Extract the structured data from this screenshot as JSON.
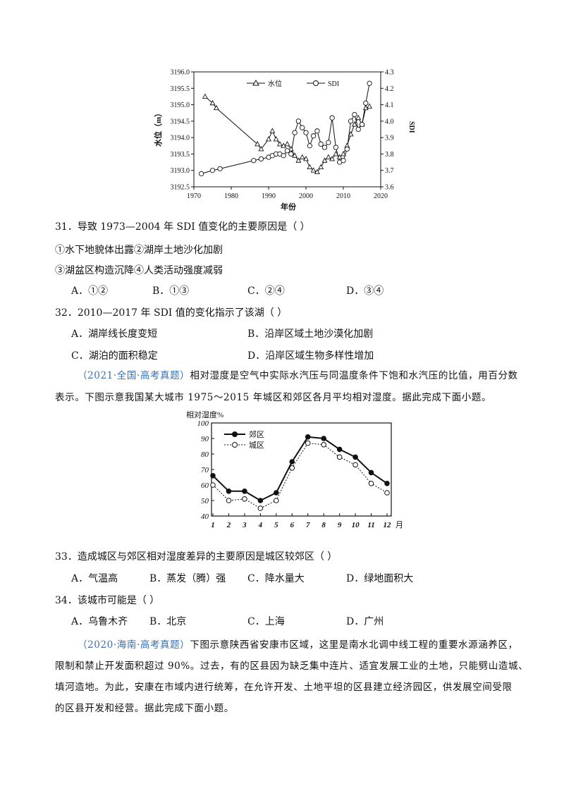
{
  "chart1": {
    "legend": [
      "水位",
      "SDI"
    ],
    "ylabel_left": "水位（m）",
    "ylabel_right": "SDI",
    "xlabel": "年份",
    "x_ticks": [
      "1970",
      "1980",
      "1990",
      "2000",
      "2010",
      "2020"
    ],
    "y_left_ticks": [
      "3196.0",
      "3195.5",
      "3195.0",
      "3194.5",
      "3194.0",
      "3193.5",
      "3193.0",
      "3192.5"
    ],
    "y_right_ticks": [
      "4.3",
      "4.2",
      "4.1",
      "4.0",
      "3.9",
      "3.8",
      "3.7",
      "3.6"
    ]
  },
  "chart_data": [
    {
      "type": "line",
      "title": "",
      "xlabel": "年份",
      "ylabel": "水位（m）",
      "ylabel_right": "SDI",
      "xlim": [
        1970,
        2020
      ],
      "ylim": [
        3192.5,
        3196.0
      ],
      "ylim_right": [
        3.6,
        4.3
      ],
      "legend_position": "top",
      "series": [
        {
          "name": "水位",
          "axis": "left",
          "marker": "triangle",
          "x": [
            1973,
            1975,
            1976,
            1987,
            1988,
            1990,
            1991,
            1992,
            1993,
            1994,
            1995,
            1996,
            1997,
            1998,
            1999,
            2000,
            2001,
            2002,
            2003,
            2004,
            2005,
            2006,
            2007,
            2008,
            2009,
            2010,
            2011,
            2012,
            2013,
            2014,
            2015,
            2016,
            2017
          ],
          "y": [
            3195.25,
            3195.05,
            3194.9,
            3193.8,
            3193.65,
            3193.95,
            3194.2,
            3193.95,
            3193.8,
            3193.75,
            3193.8,
            3193.65,
            3193.45,
            3193.3,
            3193.4,
            3193.35,
            3193.1,
            3193.0,
            3192.95,
            3193.1,
            3193.3,
            3193.4,
            3193.35,
            3193.5,
            3193.4,
            3193.5,
            3193.75,
            3194.1,
            3194.4,
            3194.6,
            3194.4,
            3194.9,
            3194.95
          ]
        },
        {
          "name": "SDI",
          "axis": "right",
          "marker": "circle",
          "x": [
            1972,
            1975,
            1977,
            1986,
            1988,
            1990,
            1991,
            1992,
            1993,
            1994,
            1995,
            1996,
            1997,
            1998,
            1999,
            2000,
            2001,
            2002,
            2003,
            2004,
            2005,
            2006,
            2007,
            2008,
            2009,
            2010,
            2011,
            2012,
            2013,
            2014,
            2015,
            2016,
            2017
          ],
          "y": [
            3.68,
            3.7,
            3.71,
            3.76,
            3.77,
            3.78,
            3.79,
            3.8,
            3.8,
            3.79,
            3.82,
            3.8,
            3.93,
            4.0,
            3.96,
            3.93,
            3.85,
            3.91,
            3.94,
            3.86,
            3.84,
            3.87,
            4.02,
            3.84,
            3.75,
            3.76,
            3.83,
            4.0,
            4.04,
            3.95,
            3.98,
            4.11,
            4.23
          ]
        }
      ]
    },
    {
      "type": "line",
      "title": "",
      "ylabel": "相对湿度%",
      "xlabel": "月",
      "ylim": [
        40,
        100
      ],
      "legend_position": "top-left",
      "categories": [
        "1",
        "2",
        "3",
        "4",
        "5",
        "6",
        "7",
        "8",
        "9",
        "10",
        "11",
        "12"
      ],
      "series": [
        {
          "name": "郊区",
          "marker": "filled-circle",
          "values": [
            66,
            56,
            56,
            50,
            55,
            75,
            91,
            90,
            83,
            78,
            68,
            61
          ]
        },
        {
          "name": "城区",
          "marker": "open-circle",
          "values": [
            60,
            50,
            51,
            45,
            50,
            71,
            87,
            86,
            78,
            73,
            61,
            55
          ]
        }
      ]
    }
  ],
  "q31": {
    "stem": "31．导致 1973—2004 年 SDI 值变化的主要原因是（    ）",
    "line1": "①水下地貌体出露②湖岸土地沙化加剧",
    "line2": "③湖盆区构造沉降④人类活动强度减弱",
    "options": [
      "A．①②",
      "B．①③",
      "C．②④",
      "D．③④"
    ]
  },
  "q32": {
    "stem": "32．2010—2017 年 SDI 值的变化指示了该湖（    ）",
    "options": [
      "A．湖岸线长度变短",
      "B．沿岸区域土地沙漠化加剧",
      "C．湖泊的面积稳定",
      "D．沿岸区域生物多样性增加"
    ]
  },
  "passage1": {
    "source": "（2021·全国·高考真题）",
    "text1": "相对湿度是空气中实际水汽压与同温度条件下饱和水汽压的比值，用百分数",
    "text2": "表示。下图示意我国某大城市 1975～2015 年城区和郊区各月平均相对湿度。据此完成下面小题。"
  },
  "chart2": {
    "ylabel": "相对湿度%",
    "legend": [
      "郊区",
      "城区"
    ],
    "y_ticks": [
      "100",
      "90",
      "80",
      "70",
      "60",
      "50",
      "40"
    ],
    "x_ticks": [
      "1",
      "2",
      "3",
      "4",
      "5",
      "6",
      "7",
      "8",
      "9",
      "10",
      "11",
      "12"
    ],
    "x_unit": "月"
  },
  "q33": {
    "stem": "33．造成城区与郊区相对湿度差异的主要原因是城区较郊区（    ）",
    "options": [
      "A．气温高",
      "B．蒸发（腾）强",
      "C．降水量大",
      "D．绿地面积大"
    ]
  },
  "q34": {
    "stem": "34．该城市可能是（    ）",
    "options": [
      "A．乌鲁木齐",
      "B．北京",
      "C．上海",
      "D．广州"
    ]
  },
  "passage2": {
    "source": "（2020·海南·高考真题）",
    "text1": "下图示意陕西省安康市区域，这里是南水北调中线工程的重要水源涵养区，",
    "text2": "限制和禁止开发面积超过 90%。过去，有的区县因为缺乏集中连片、适宜发展工业的土地，只能劈山造城、",
    "text3": "填河造地。为此，安康在市域内进行统筹，在允许开发、土地平坦的区县建立经济园区，供发展空间受限",
    "text4": "的区县开发和经营。据此完成下面小题。"
  }
}
